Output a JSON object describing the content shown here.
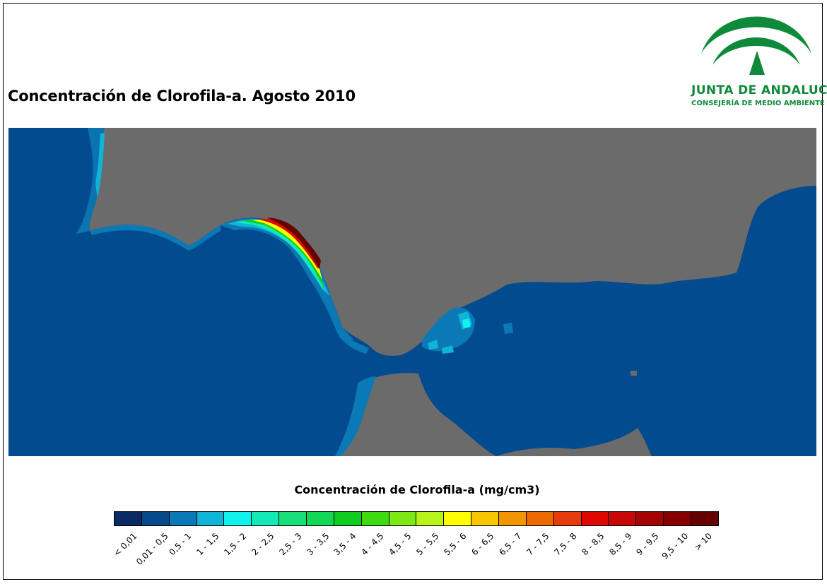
{
  "title": "Concentración de Clorofila-a. Agosto 2010",
  "logo": {
    "name": "JUNTA DE ANDALUCIA",
    "subtitle": "CONSEJERÍA DE MEDIO AMBIENTE",
    "color": "#0f8a3b"
  },
  "map": {
    "sea_color": "#024b8f",
    "land_color": "#6b6b6b"
  },
  "legend": {
    "title": "Concentración de Clorofila-a (mg/cm3)",
    "classes": [
      {
        "label": "< 0,01",
        "color": "#0a2a63"
      },
      {
        "label": "0,01 - 0,5",
        "color": "#064a8c"
      },
      {
        "label": "0,5 - 1",
        "color": "#0b79b5"
      },
      {
        "label": "1 - 1,5",
        "color": "#10b4d6"
      },
      {
        "label": "1,5 - 2",
        "color": "#0ff2ee"
      },
      {
        "label": "2 - 2,5",
        "color": "#14e9b8"
      },
      {
        "label": "2,5 - 3",
        "color": "#17df7a"
      },
      {
        "label": "3 - 3,5",
        "color": "#14d655"
      },
      {
        "label": "3,5 - 4",
        "color": "#10cc1e"
      },
      {
        "label": "4 - 4,5",
        "color": "#3fdb12"
      },
      {
        "label": "4,5 - 5",
        "color": "#7de816"
      },
      {
        "label": "5 - 5,5",
        "color": "#b8f41a"
      },
      {
        "label": "5,5 - 6",
        "color": "#ffff00"
      },
      {
        "label": "6 - 6,5",
        "color": "#f7c600"
      },
      {
        "label": "6,5 - 7",
        "color": "#f29600"
      },
      {
        "label": "7 - 7,5",
        "color": "#ec6a00"
      },
      {
        "label": "7,5 - 8",
        "color": "#e63c0c"
      },
      {
        "label": "8 - 8,5",
        "color": "#df0800"
      },
      {
        "label": "8,5 - 9",
        "color": "#c60808"
      },
      {
        "label": "9 - 9,5",
        "color": "#a50404"
      },
      {
        "label": "9,5 - 10",
        "color": "#860000"
      },
      {
        "label": "> 10",
        "color": "#670000"
      }
    ]
  }
}
